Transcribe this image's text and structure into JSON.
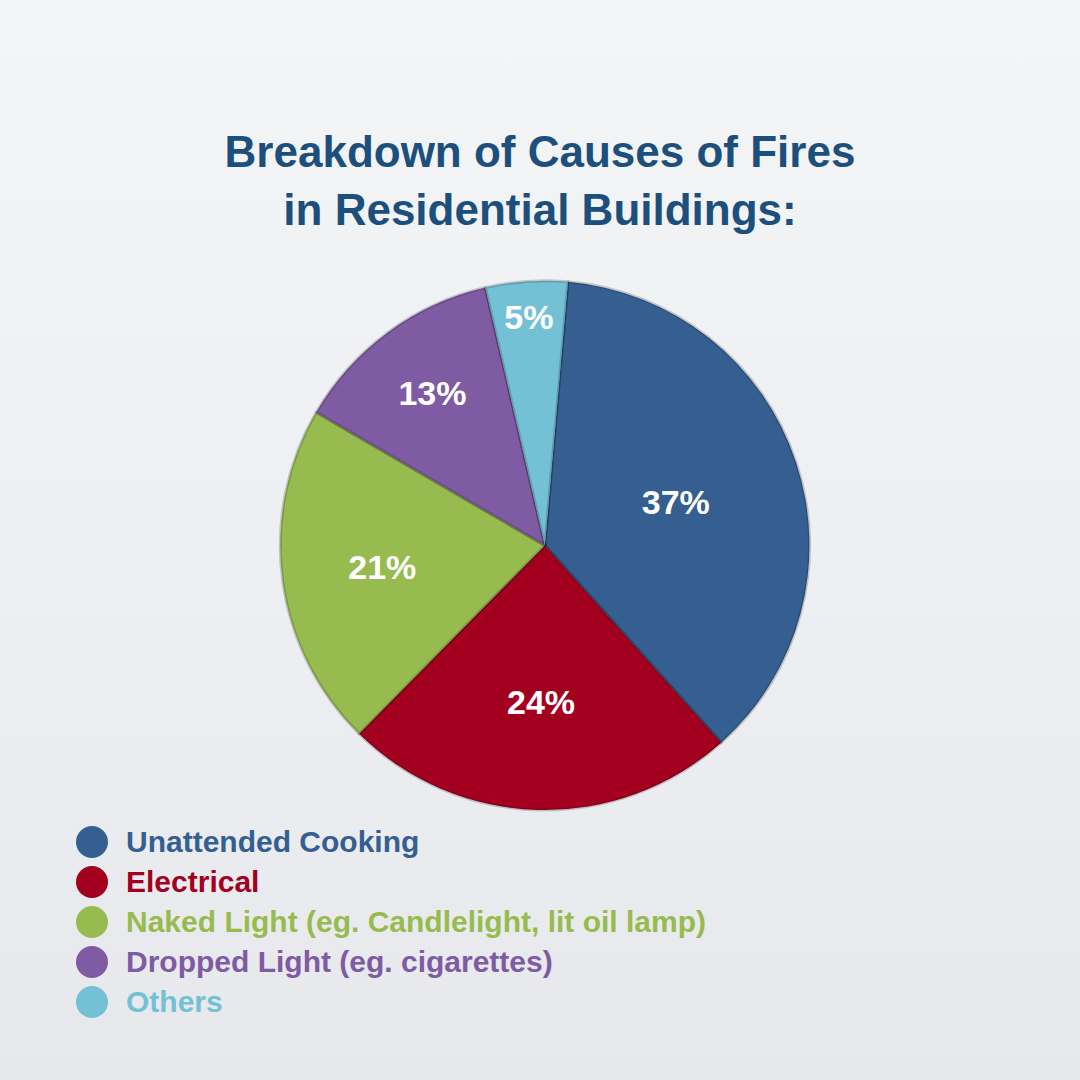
{
  "chart_data": {
    "type": "pie",
    "title": "Breakdown of Causes of Fires in Residential Buildings:",
    "categories": [
      "Unattended Cooking",
      "Electrical",
      "Naked Light (eg. Candlelight, lit oil lamp)",
      "Dropped Light (eg. cigarettes)",
      "Others"
    ],
    "values": [
      37,
      24,
      21,
      13,
      5
    ],
    "value_labels": [
      "37%",
      "24%",
      "21%",
      "13%",
      "5%"
    ],
    "colors": [
      "#345f90",
      "#a3001f",
      "#98bb4f",
      "#7e5ba3",
      "#74c1d6"
    ],
    "data_labels": true,
    "legend": "lower left"
  }
}
